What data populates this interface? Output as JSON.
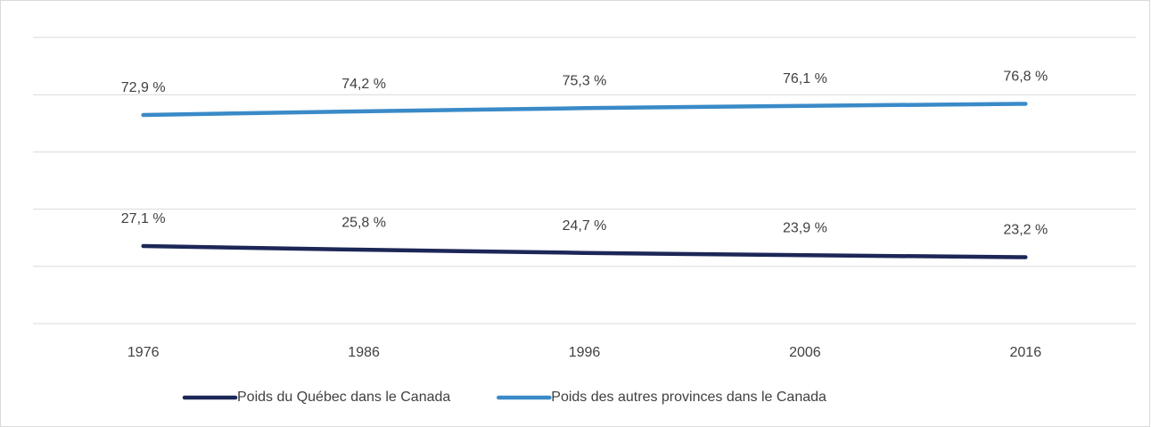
{
  "chart_data": {
    "type": "line",
    "categories": [
      "1976",
      "1986",
      "1996",
      "2006",
      "2016"
    ],
    "series": [
      {
        "name": "Poids du Québec dans le Canada",
        "color": "#1c2757",
        "values": [
          27.1,
          25.8,
          24.7,
          23.9,
          23.2
        ],
        "value_labels": [
          "27,1 %",
          "25,8 %",
          "24,7 %",
          "23,9 %",
          "23,2 %"
        ]
      },
      {
        "name": "Poids des autres provinces dans le Canada",
        "color": "#3a8ac8",
        "values": [
          72.9,
          74.2,
          75.3,
          76.1,
          76.8
        ],
        "value_labels": [
          "72,9 %",
          "74,2 %",
          "75,3 %",
          "76,1 %",
          "76,8 %"
        ]
      }
    ],
    "ylim": [
      0,
      100
    ],
    "yticks": [
      0,
      20,
      40,
      60,
      80,
      100
    ],
    "grid": true,
    "legend": "bottom"
  }
}
